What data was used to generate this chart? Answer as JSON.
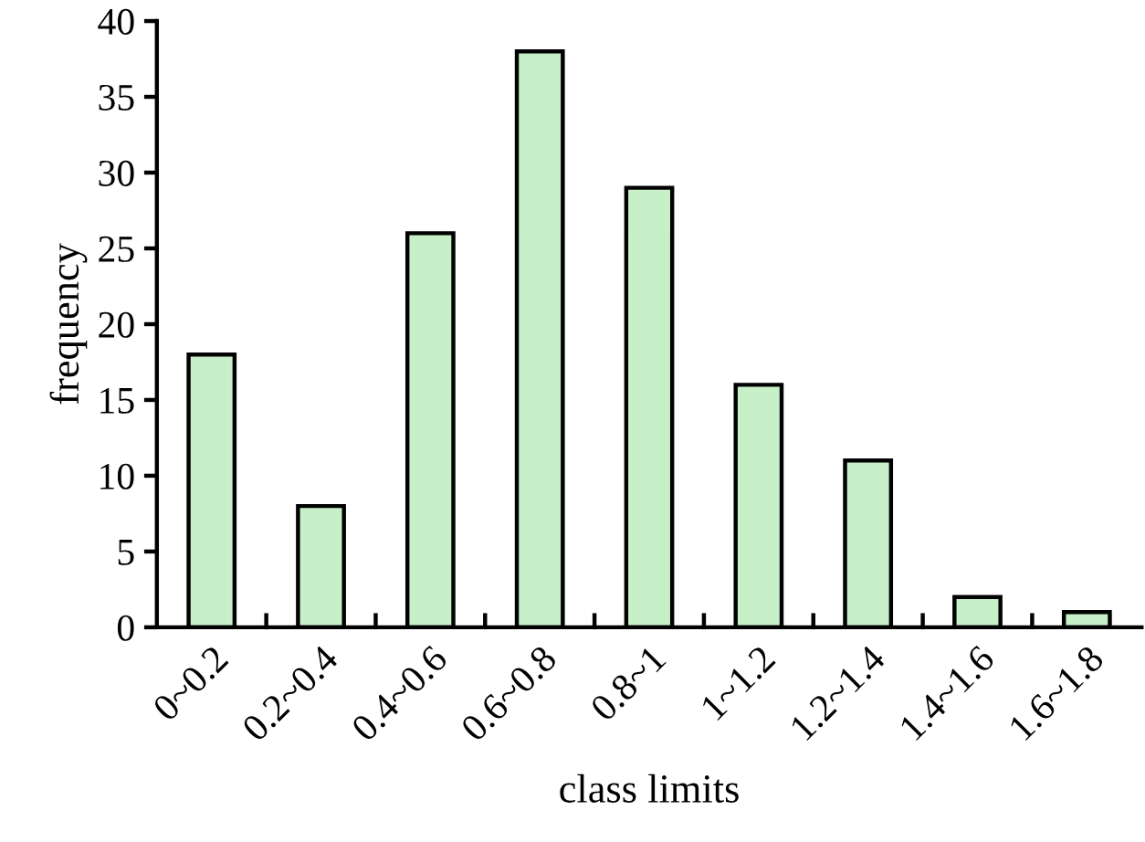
{
  "chart_data": {
    "type": "bar",
    "xlabel": "class limits",
    "ylabel": "frequency",
    "categories": [
      "0~0.2",
      "0.2~0.4",
      "0.4~0.6",
      "0.6~0.8",
      "0.8~1",
      "1~1.2",
      "1.2~1.4",
      "1.4~1.6",
      "1.6~1.8"
    ],
    "values": [
      18,
      8,
      26,
      38,
      29,
      16,
      11,
      2,
      1
    ],
    "color": "#c8f0c8",
    "ylim": [
      0,
      40
    ],
    "yticks": [
      0,
      5,
      10,
      15,
      20,
      25,
      30,
      35,
      40
    ],
    "grid": false,
    "legend": false
  }
}
